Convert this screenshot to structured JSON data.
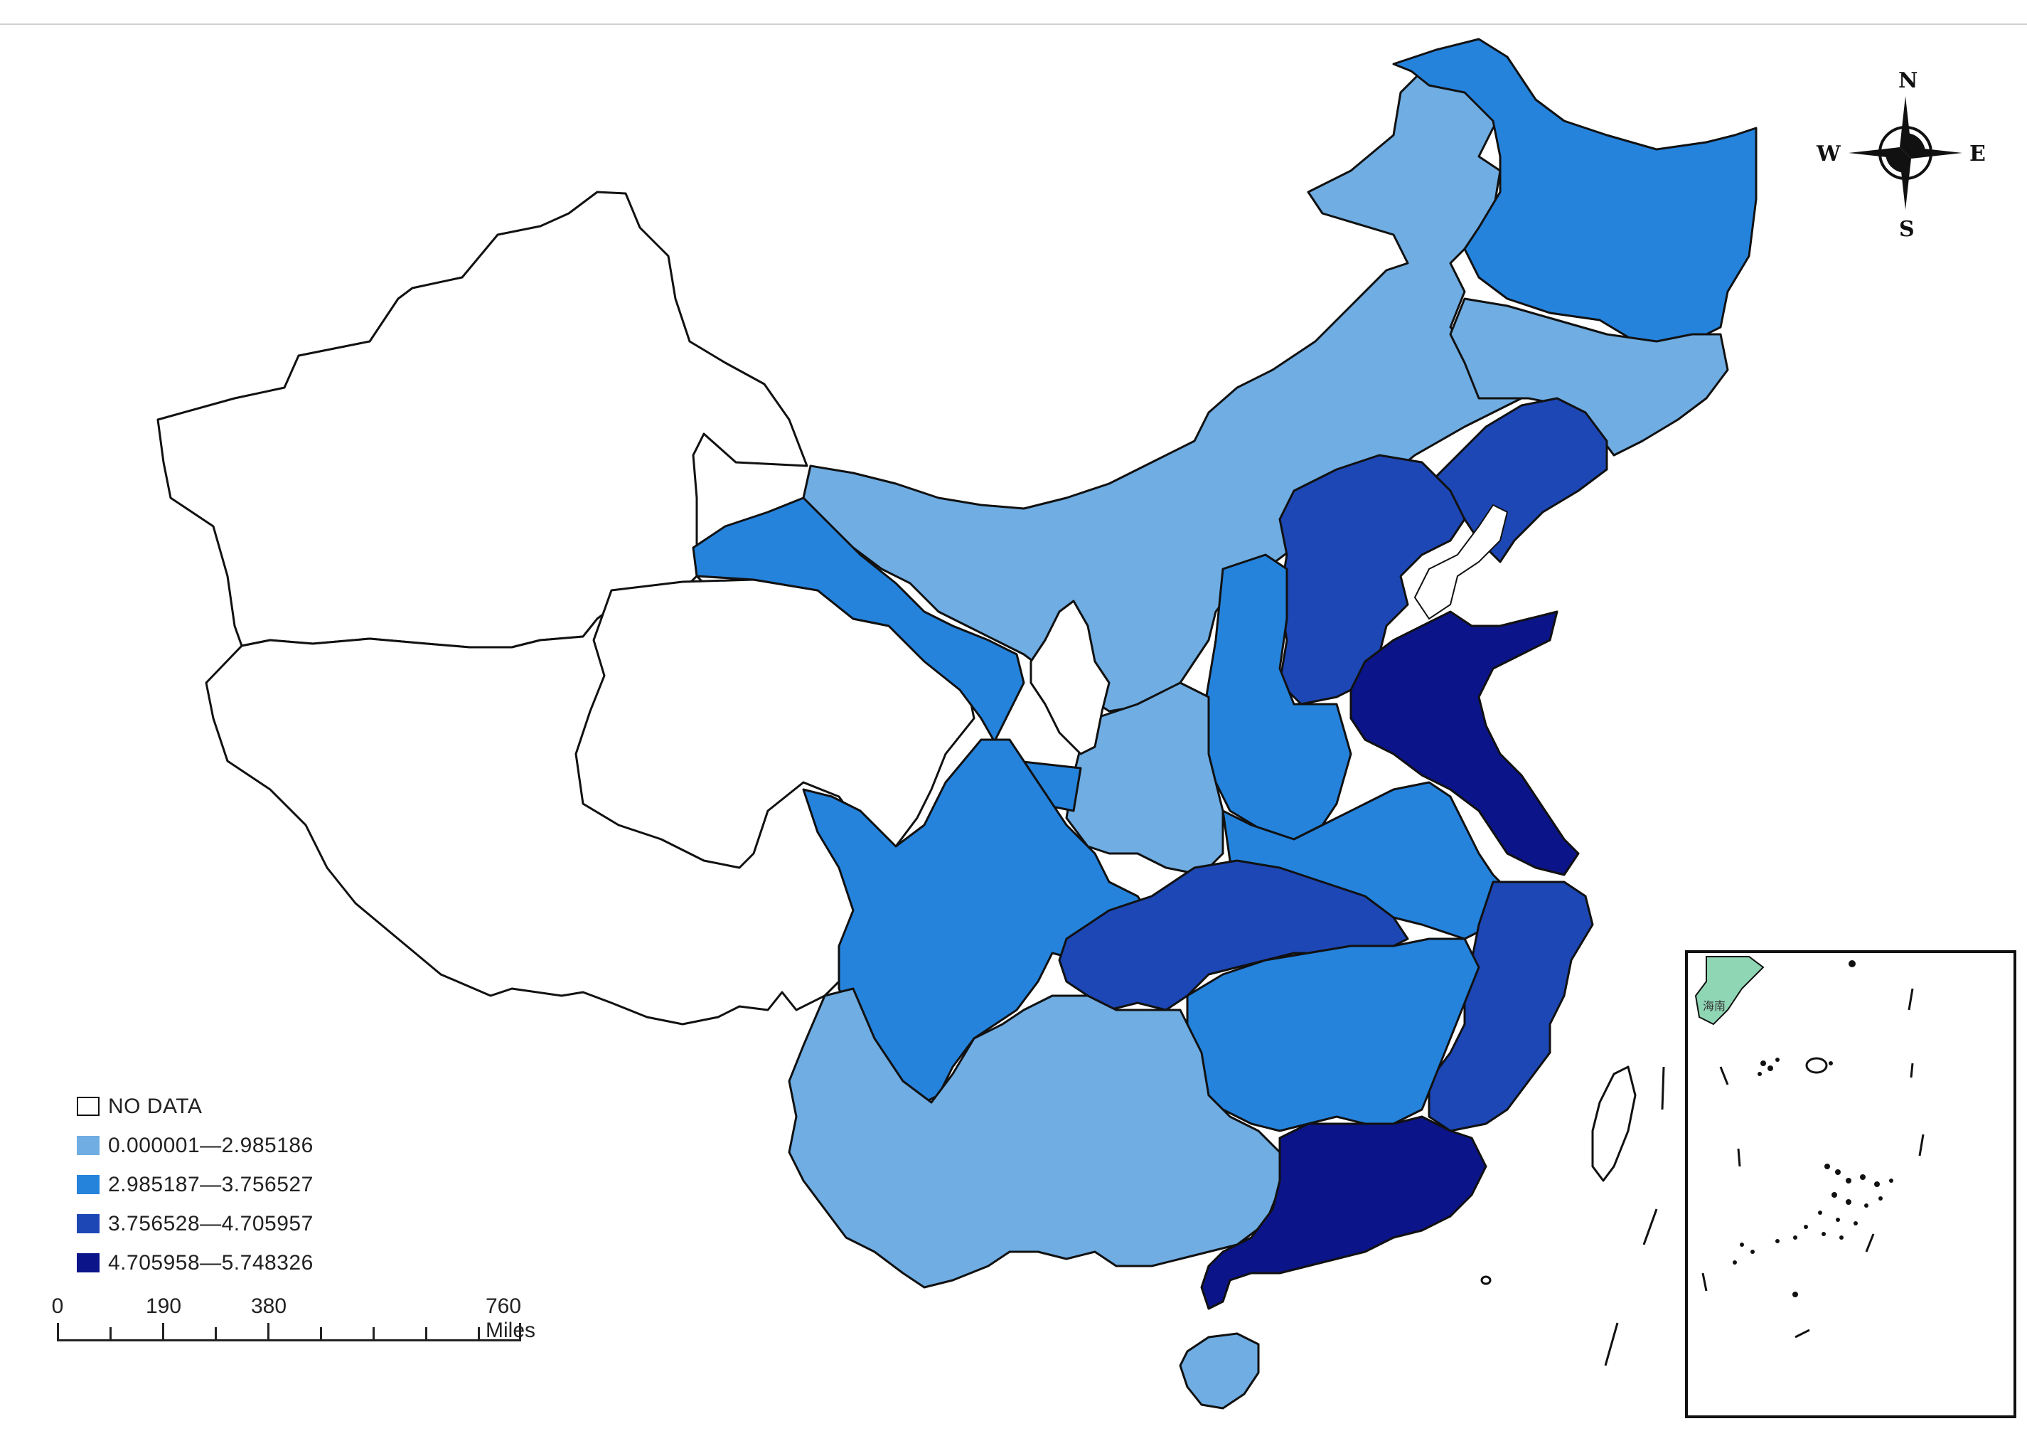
{
  "colors": {
    "no_data": "#ffffff",
    "class1": "#6fade3",
    "class2": "#2583dc",
    "class3": "#1d47b4",
    "class4": "#0b1488",
    "outline": "#111111",
    "inset_green": "#8fd6b4"
  },
  "compass": {
    "north": "N",
    "south": "S",
    "east": "E",
    "west": "W"
  },
  "legend": {
    "items": [
      {
        "label": "NO DATA",
        "color": "#ffffff"
      },
      {
        "label": "0.000001—2.985186",
        "color": "#6fade3"
      },
      {
        "label": "2.985187—3.756527",
        "color": "#2583dc"
      },
      {
        "label": "3.756528—4.705957",
        "color": "#1d47b4"
      },
      {
        "label": "4.705958—5.748326",
        "color": "#0b1488"
      }
    ]
  },
  "scale_bar": {
    "labels": [
      "0",
      "190",
      "380",
      "760 Miles"
    ]
  },
  "inset": {
    "label": "海南"
  }
}
